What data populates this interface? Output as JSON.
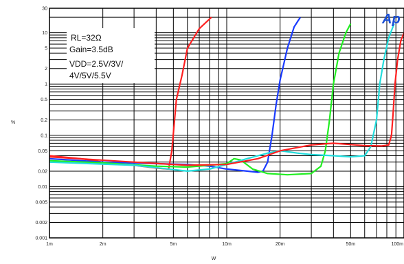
{
  "chart_data": {
    "type": "line",
    "xlabel": "W",
    "ylabel": "%",
    "x_scale": "log",
    "y_scale": "log",
    "xlim": [
      0.001,
      0.1
    ],
    "ylim": [
      0.001,
      30
    ],
    "grid": true,
    "x_ticks": [
      {
        "value": 0.001,
        "label": "1m"
      },
      {
        "value": 0.002,
        "label": "2m"
      },
      {
        "value": 0.005,
        "label": "5m"
      },
      {
        "value": 0.01,
        "label": "10m"
      },
      {
        "value": 0.02,
        "label": "20m"
      },
      {
        "value": 0.05,
        "label": "50m"
      },
      {
        "value": 0.1,
        "label": "100m"
      }
    ],
    "y_ticks": [
      {
        "value": 30,
        "label": "30"
      },
      {
        "value": 10,
        "label": "10"
      },
      {
        "value": 5,
        "label": "5"
      },
      {
        "value": 2,
        "label": "2"
      },
      {
        "value": 1,
        "label": "1"
      },
      {
        "value": 0.5,
        "label": "0.5"
      },
      {
        "value": 0.2,
        "label": "0.2"
      },
      {
        "value": 0.1,
        "label": "0.1"
      },
      {
        "value": 0.05,
        "label": "0.05"
      },
      {
        "value": 0.02,
        "label": "0.02"
      },
      {
        "value": 0.01,
        "label": "0.01"
      },
      {
        "value": 0.005,
        "label": "0.005"
      },
      {
        "value": 0.002,
        "label": "0.002"
      },
      {
        "value": 0.001,
        "label": "0.001"
      }
    ],
    "annotation_lines": [
      "RL=32Ω",
      "Gain=3.5dB",
      "VDD=2.5V/3V/",
      "4V/5V/5.5V"
    ],
    "logo_text": "Ap",
    "series": [
      {
        "color": "#ff2020",
        "points": [
          [
            0.001,
            0.04
          ],
          [
            0.0015,
            0.035
          ],
          [
            0.002,
            0.03
          ],
          [
            0.003,
            0.026
          ],
          [
            0.004,
            0.023
          ],
          [
            0.0047,
            0.022
          ],
          [
            0.0049,
            0.05
          ],
          [
            0.0052,
            0.5
          ],
          [
            0.0056,
            1.5
          ],
          [
            0.006,
            5
          ],
          [
            0.007,
            12
          ],
          [
            0.0082,
            20
          ]
        ]
      },
      {
        "color": "#1a3bff",
        "points": [
          [
            0.001,
            0.035
          ],
          [
            0.002,
            0.03
          ],
          [
            0.004,
            0.028
          ],
          [
            0.006,
            0.027
          ],
          [
            0.008,
            0.025
          ],
          [
            0.01,
            0.022
          ],
          [
            0.013,
            0.02
          ],
          [
            0.015,
            0.019
          ],
          [
            0.016,
            0.02
          ],
          [
            0.017,
            0.03
          ],
          [
            0.018,
            0.1
          ],
          [
            0.019,
            0.4
          ],
          [
            0.02,
            1.2
          ],
          [
            0.022,
            5
          ],
          [
            0.024,
            13
          ],
          [
            0.026,
            20
          ]
        ]
      },
      {
        "color": "#22ee22",
        "points": [
          [
            0.001,
            0.032
          ],
          [
            0.002,
            0.029
          ],
          [
            0.004,
            0.025
          ],
          [
            0.006,
            0.024
          ],
          [
            0.008,
            0.026
          ],
          [
            0.01,
            0.028
          ],
          [
            0.011,
            0.035
          ],
          [
            0.012,
            0.033
          ],
          [
            0.014,
            0.022
          ],
          [
            0.017,
            0.018
          ],
          [
            0.022,
            0.017
          ],
          [
            0.03,
            0.018
          ],
          [
            0.034,
            0.025
          ],
          [
            0.036,
            0.05
          ],
          [
            0.038,
            0.2
          ],
          [
            0.04,
            1
          ],
          [
            0.043,
            4
          ],
          [
            0.047,
            10
          ],
          [
            0.05,
            15
          ]
        ]
      },
      {
        "color": "#22dddd",
        "points": [
          [
            0.001,
            0.03
          ],
          [
            0.003,
            0.026
          ],
          [
            0.006,
            0.02
          ],
          [
            0.008,
            0.022
          ],
          [
            0.01,
            0.027
          ],
          [
            0.013,
            0.035
          ],
          [
            0.017,
            0.045
          ],
          [
            0.02,
            0.05
          ],
          [
            0.025,
            0.045
          ],
          [
            0.03,
            0.042
          ],
          [
            0.04,
            0.04
          ],
          [
            0.05,
            0.038
          ],
          [
            0.06,
            0.04
          ],
          [
            0.065,
            0.06
          ],
          [
            0.07,
            0.2
          ],
          [
            0.073,
            1
          ],
          [
            0.077,
            3
          ],
          [
            0.082,
            8
          ],
          [
            0.088,
            15
          ]
        ]
      },
      {
        "color": "#ff2020",
        "points": [
          [
            0.001,
            0.038
          ],
          [
            0.003,
            0.03
          ],
          [
            0.006,
            0.026
          ],
          [
            0.01,
            0.027
          ],
          [
            0.015,
            0.035
          ],
          [
            0.02,
            0.05
          ],
          [
            0.03,
            0.065
          ],
          [
            0.04,
            0.07
          ],
          [
            0.05,
            0.066
          ],
          [
            0.06,
            0.063
          ],
          [
            0.075,
            0.062
          ],
          [
            0.082,
            0.065
          ],
          [
            0.085,
            0.1
          ],
          [
            0.087,
            0.3
          ],
          [
            0.089,
            1
          ],
          [
            0.092,
            3
          ],
          [
            0.096,
            7
          ],
          [
            0.1,
            10
          ]
        ]
      }
    ]
  }
}
